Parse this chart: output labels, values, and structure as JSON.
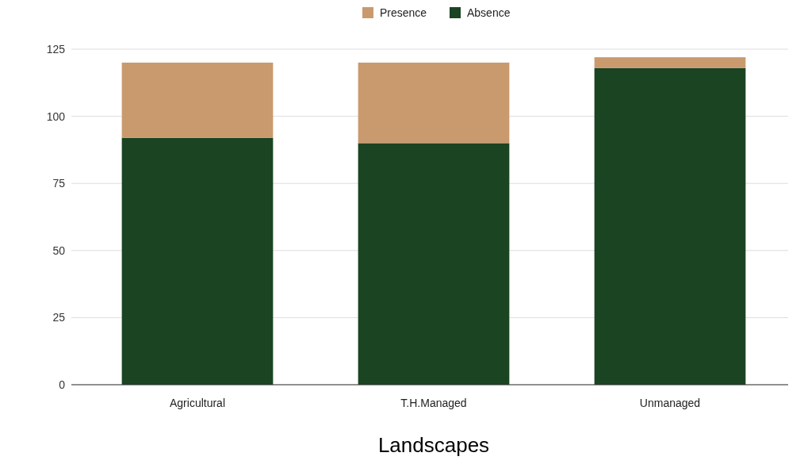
{
  "chart_data": {
    "type": "bar",
    "stacked": true,
    "xlabel": "Landscapes",
    "categories": [
      "Agricultural",
      "T.H.Managed",
      "Unmanaged"
    ],
    "series": [
      {
        "name": "Absence",
        "color": "#1b4423",
        "values": [
          92,
          90,
          118
        ]
      },
      {
        "name": "Presence",
        "color": "#c99a6e",
        "values": [
          28,
          30,
          4
        ]
      }
    ],
    "ylim": [
      0,
      125
    ],
    "yticks": [
      0,
      25,
      50,
      75,
      100,
      125
    ],
    "grid": "y",
    "legend": "top"
  }
}
